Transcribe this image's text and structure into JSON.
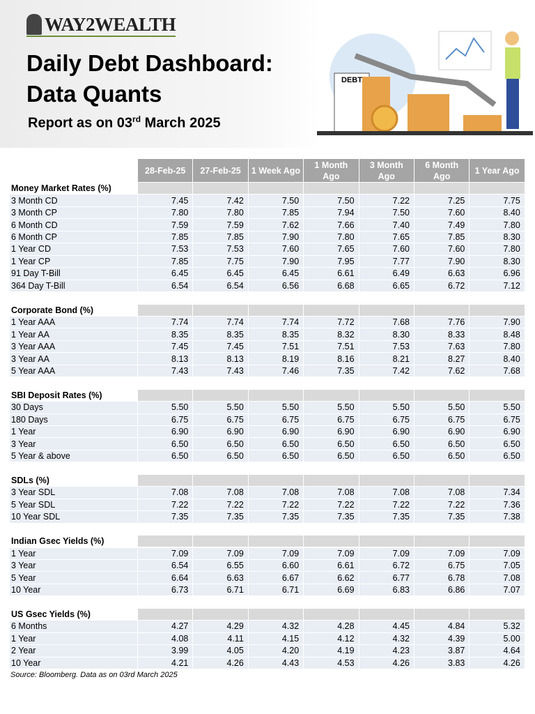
{
  "header": {
    "logo": "WAY2WEALTH",
    "title_line1": "Daily Debt Dashboard:",
    "title_line2": "Data Quants",
    "report": {
      "text": "Report as on 03",
      "sup": "rd",
      "rest": "March 2025"
    },
    "illustration_label": "DEBT"
  },
  "table": {
    "columns": [
      "28-Feb-25",
      "27-Feb-25",
      "1 Week Ago",
      "1 Month Ago",
      "3 Month Ago",
      "6 Month Ago",
      "1 Year Ago"
    ],
    "sections": [
      {
        "title": "Money Market Rates (%)",
        "rows": [
          {
            "label": "3 Month CD",
            "values": [
              "7.45",
              "7.42",
              "7.50",
              "7.50",
              "7.22",
              "7.25",
              "7.75"
            ]
          },
          {
            "label": "3 Month CP",
            "values": [
              "7.80",
              "7.80",
              "7.85",
              "7.94",
              "7.50",
              "7.60",
              "8.40"
            ]
          },
          {
            "label": "6 Month CD",
            "values": [
              "7.59",
              "7.59",
              "7.62",
              "7.66",
              "7.40",
              "7.49",
              "7.80"
            ]
          },
          {
            "label": "6 Month CP",
            "values": [
              "7.85",
              "7.85",
              "7.90",
              "7.80",
              "7.65",
              "7.85",
              "8.30"
            ]
          },
          {
            "label": "1 Year CD",
            "values": [
              "7.53",
              "7.53",
              "7.60",
              "7.65",
              "7.60",
              "7.60",
              "7.80"
            ]
          },
          {
            "label": "1 Year CP",
            "values": [
              "7.85",
              "7.75",
              "7.90",
              "7.95",
              "7.77",
              "7.90",
              "8.30"
            ]
          },
          {
            "label": "91 Day T-Bill",
            "values": [
              "6.45",
              "6.45",
              "6.45",
              "6.61",
              "6.49",
              "6.63",
              "6.96"
            ]
          },
          {
            "label": "364 Day T-Bill",
            "values": [
              "6.54",
              "6.54",
              "6.56",
              "6.68",
              "6.65",
              "6.72",
              "7.12"
            ]
          }
        ]
      },
      {
        "title": "Corporate Bond (%)",
        "rows": [
          {
            "label": "1 Year AAA",
            "values": [
              "7.74",
              "7.74",
              "7.74",
              "7.72",
              "7.68",
              "7.76",
              "7.90"
            ]
          },
          {
            "label": "1 Year AA",
            "values": [
              "8.35",
              "8.35",
              "8.35",
              "8.32",
              "8.30",
              "8.33",
              "8.48"
            ]
          },
          {
            "label": "3 Year AAA",
            "values": [
              "7.45",
              "7.45",
              "7.51",
              "7.51",
              "7.53",
              "7.63",
              "7.80"
            ]
          },
          {
            "label": "3 Year AA",
            "values": [
              "8.13",
              "8.13",
              "8.19",
              "8.16",
              "8.21",
              "8.27",
              "8.40"
            ]
          },
          {
            "label": "5 Year AAA",
            "values": [
              "7.43",
              "7.43",
              "7.46",
              "7.35",
              "7.42",
              "7.62",
              "7.68"
            ]
          }
        ]
      },
      {
        "title": "SBI Deposit Rates (%)",
        "rows": [
          {
            "label": "30 Days",
            "values": [
              "5.50",
              "5.50",
              "5.50",
              "5.50",
              "5.50",
              "5.50",
              "5.50"
            ]
          },
          {
            "label": "180 Days",
            "values": [
              "6.75",
              "6.75",
              "6.75",
              "6.75",
              "6.75",
              "6.75",
              "6.75"
            ]
          },
          {
            "label": "1 Year",
            "values": [
              "6.90",
              "6.90",
              "6.90",
              "6.90",
              "6.90",
              "6.90",
              "6.90"
            ]
          },
          {
            "label": "3 Year",
            "values": [
              "6.50",
              "6.50",
              "6.50",
              "6.50",
              "6.50",
              "6.50",
              "6.50"
            ]
          },
          {
            "label": "5 Year & above",
            "values": [
              "6.50",
              "6.50",
              "6.50",
              "6.50",
              "6.50",
              "6.50",
              "6.50"
            ]
          }
        ]
      },
      {
        "title": "SDLs (%)",
        "rows": [
          {
            "label": "3 Year SDL",
            "values": [
              "7.08",
              "7.08",
              "7.08",
              "7.08",
              "7.08",
              "7.08",
              "7.34"
            ]
          },
          {
            "label": "5 Year SDL",
            "values": [
              "7.22",
              "7.22",
              "7.22",
              "7.22",
              "7.22",
              "7.22",
              "7.36"
            ]
          },
          {
            "label": "10 Year SDL",
            "values": [
              "7.35",
              "7.35",
              "7.35",
              "7.35",
              "7.35",
              "7.35",
              "7.38"
            ]
          }
        ]
      },
      {
        "title": "Indian Gsec Yields (%)",
        "rows": [
          {
            "label": "1 Year",
            "values": [
              "7.09",
              "7.09",
              "7.09",
              "7.09",
              "7.09",
              "7.09",
              "7.09"
            ]
          },
          {
            "label": "3 Year",
            "values": [
              "6.54",
              "6.55",
              "6.60",
              "6.61",
              "6.72",
              "6.75",
              "7.05"
            ]
          },
          {
            "label": "5 Year",
            "values": [
              "6.64",
              "6.63",
              "6.67",
              "6.62",
              "6.77",
              "6.78",
              "7.08"
            ]
          },
          {
            "label": "10 Year",
            "values": [
              "6.73",
              "6.71",
              "6.71",
              "6.69",
              "6.83",
              "6.86",
              "7.07"
            ]
          }
        ]
      },
      {
        "title": "US Gsec Yields (%)",
        "rows": [
          {
            "label": "6 Months",
            "values": [
              "4.27",
              "4.29",
              "4.32",
              "4.28",
              "4.45",
              "4.84",
              "5.32"
            ]
          },
          {
            "label": "1 Year",
            "values": [
              "4.08",
              "4.11",
              "4.15",
              "4.12",
              "4.32",
              "4.39",
              "5.00"
            ]
          },
          {
            "label": "2 Year",
            "values": [
              "3.99",
              "4.05",
              "4.20",
              "4.19",
              "4.23",
              "3.87",
              "4.64"
            ]
          },
          {
            "label": "10 Year",
            "values": [
              "4.21",
              "4.26",
              "4.43",
              "4.53",
              "4.26",
              "3.83",
              "4.26"
            ]
          }
        ]
      }
    ]
  },
  "source": "Source: Bloomberg. Data as on 03rd March 2025"
}
